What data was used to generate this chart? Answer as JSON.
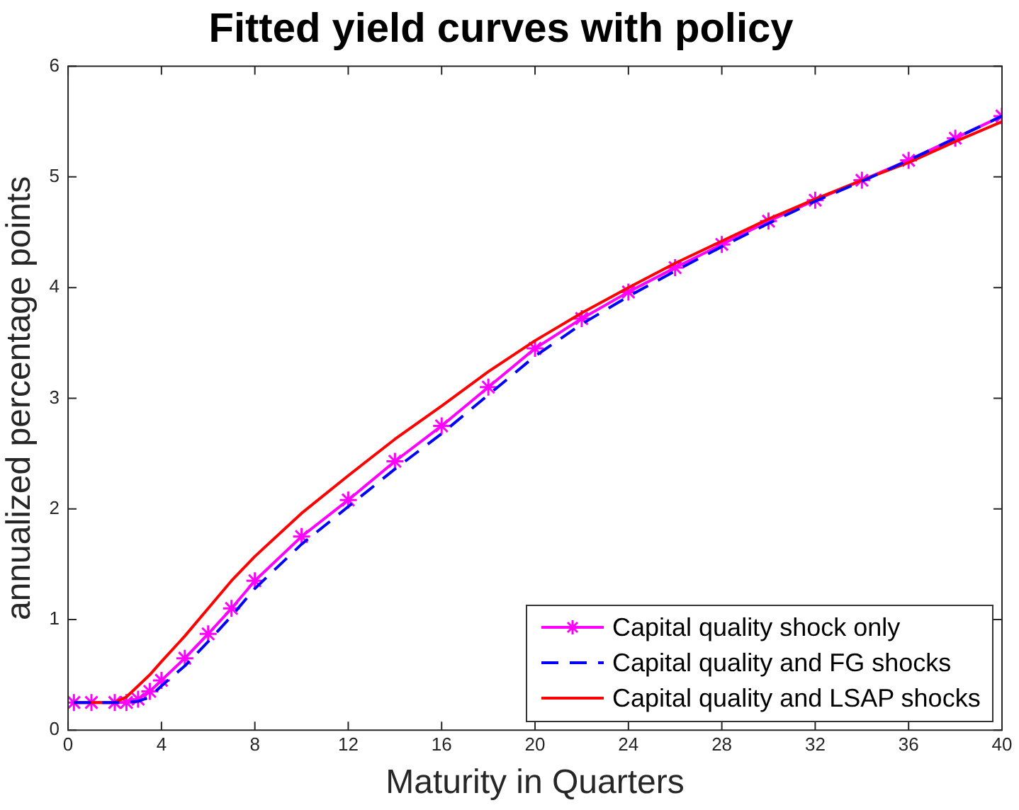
{
  "chart_data": {
    "type": "line",
    "title": "Fitted yield curves with policy",
    "xlabel": "Maturity in Quarters",
    "ylabel": "annualized percentage points",
    "x": [
      0.25,
      1,
      2,
      2.5,
      3,
      3.5,
      4,
      5,
      6,
      7,
      8,
      10,
      12,
      14,
      16,
      18,
      20,
      22,
      24,
      26,
      28,
      30,
      32,
      34,
      36,
      38,
      40
    ],
    "series": [
      {
        "name": "Capital quality shock only",
        "color": "#ff00ff",
        "marker": "cross",
        "line_style": "solid",
        "values": [
          0.25,
          0.25,
          0.25,
          0.25,
          0.28,
          0.35,
          0.45,
          0.65,
          0.87,
          1.1,
          1.35,
          1.75,
          2.08,
          2.43,
          2.75,
          3.1,
          3.45,
          3.72,
          3.96,
          4.18,
          4.39,
          4.6,
          4.79,
          4.97,
          5.15,
          5.35,
          5.55
        ]
      },
      {
        "name": "Capital quality and FG shocks",
        "color": "#0000ff",
        "marker": "none",
        "line_style": "dashed",
        "values": [
          0.25,
          0.25,
          0.25,
          0.25,
          0.26,
          0.3,
          0.4,
          0.58,
          0.8,
          1.03,
          1.28,
          1.68,
          2.02,
          2.36,
          2.68,
          3.03,
          3.38,
          3.67,
          3.92,
          4.15,
          4.37,
          4.58,
          4.78,
          4.96,
          5.15,
          5.35,
          5.55
        ]
      },
      {
        "name": "Capital quality and LSAP shocks",
        "color": "#ff0000",
        "marker": "none",
        "line_style": "solid",
        "values": [
          0.25,
          0.25,
          0.25,
          0.3,
          0.4,
          0.5,
          0.62,
          0.85,
          1.1,
          1.35,
          1.57,
          1.96,
          2.3,
          2.63,
          2.93,
          3.24,
          3.52,
          3.77,
          4.0,
          4.22,
          4.42,
          4.62,
          4.8,
          4.97,
          5.13,
          5.32,
          5.5
        ]
      }
    ],
    "xlim": [
      0,
      40
    ],
    "xticks": [
      0,
      4,
      8,
      12,
      16,
      20,
      24,
      28,
      32,
      36,
      40
    ],
    "ylim": [
      0,
      6
    ],
    "yticks": [
      0,
      1,
      2,
      3,
      4,
      5,
      6
    ],
    "grid": false,
    "legend": "bottom right"
  }
}
